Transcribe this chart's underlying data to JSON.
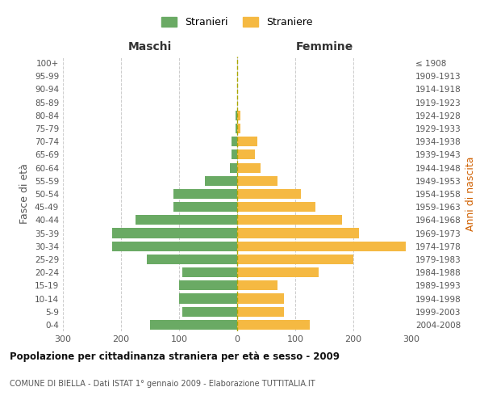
{
  "age_groups": [
    "0-4",
    "5-9",
    "10-14",
    "15-19",
    "20-24",
    "25-29",
    "30-34",
    "35-39",
    "40-44",
    "45-49",
    "50-54",
    "55-59",
    "60-64",
    "65-69",
    "70-74",
    "75-79",
    "80-84",
    "85-89",
    "90-94",
    "95-99",
    "100+"
  ],
  "birth_years": [
    "2004-2008",
    "1999-2003",
    "1994-1998",
    "1989-1993",
    "1984-1988",
    "1979-1983",
    "1974-1978",
    "1969-1973",
    "1964-1968",
    "1959-1963",
    "1954-1958",
    "1949-1953",
    "1944-1948",
    "1939-1943",
    "1934-1938",
    "1929-1933",
    "1924-1928",
    "1919-1923",
    "1914-1918",
    "1909-1913",
    "≤ 1908"
  ],
  "maschi": [
    150,
    95,
    100,
    100,
    95,
    155,
    215,
    215,
    175,
    110,
    110,
    55,
    13,
    10,
    10,
    3,
    3,
    0,
    0,
    0,
    0
  ],
  "femmine": [
    125,
    80,
    80,
    70,
    140,
    200,
    290,
    210,
    180,
    135,
    110,
    70,
    40,
    30,
    35,
    5,
    5,
    0,
    0,
    0,
    0
  ],
  "color_maschi": "#6aaa64",
  "color_femmine": "#f5b942",
  "dashed_line_color": "#aaa800",
  "title": "Popolazione per cittadinanza straniera per età e sesso - 2009",
  "subtitle": "COMUNE DI BIELLA - Dati ISTAT 1° gennaio 2009 - Elaborazione TUTTITALIA.IT",
  "xlabel_left": "Maschi",
  "xlabel_right": "Femmine",
  "ylabel_left": "Fasce di età",
  "ylabel_right": "Anni di nascita",
  "legend_maschi": "Stranieri",
  "legend_femmine": "Straniere",
  "xlim": 300,
  "background_color": "#ffffff",
  "grid_color": "#cccccc"
}
